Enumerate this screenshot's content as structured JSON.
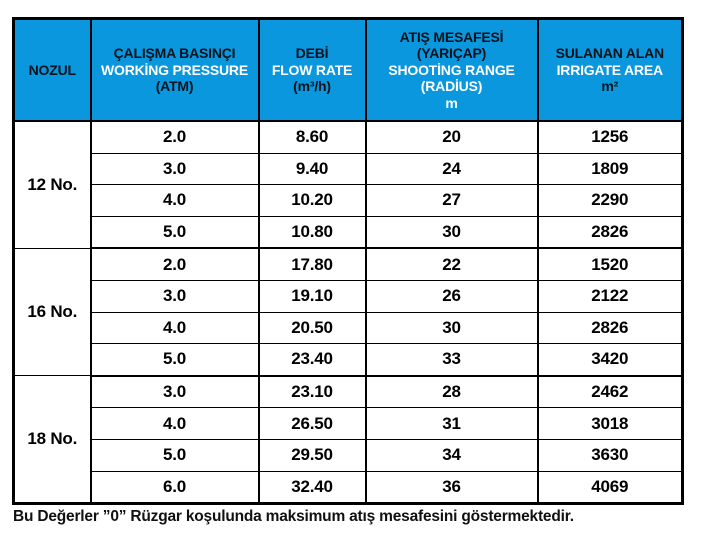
{
  "colors": {
    "header_bg": "#0B97DD",
    "header_dark_text": "#06131d",
    "header_light_text": "#ffffff",
    "border": "#000000",
    "body_text": "#000000"
  },
  "table": {
    "header": {
      "nozul": "NOZUL",
      "pressure": {
        "tr": "ÇALIŞMA BASINÇI",
        "en": "WORKİNG PRESSURE",
        "unit": "(ATM)"
      },
      "flow": {
        "tr": "DEBİ",
        "en": "FLOW RATE",
        "unit": "(m³/h)"
      },
      "range": {
        "tr1": "ATIŞ MESAFESİ",
        "tr2": "(YARIÇAP)",
        "en1": "SHOOTİNG RANGE",
        "en2": "(RADİUS)",
        "unit": "m"
      },
      "area": {
        "tr": "SULANAN ALAN",
        "en": "IRRIGATE AREA",
        "unit": "m²"
      }
    },
    "groups": [
      {
        "nozzle": "12 No.",
        "rows": [
          [
            "2.0",
            "8.60",
            "20",
            "1256"
          ],
          [
            "3.0",
            "9.40",
            "24",
            "1809"
          ],
          [
            "4.0",
            "10.20",
            "27",
            "2290"
          ],
          [
            "5.0",
            "10.80",
            "30",
            "2826"
          ]
        ]
      },
      {
        "nozzle": "16 No.",
        "rows": [
          [
            "2.0",
            "17.80",
            "22",
            "1520"
          ],
          [
            "3.0",
            "19.10",
            "26",
            "2122"
          ],
          [
            "4.0",
            "20.50",
            "30",
            "2826"
          ],
          [
            "5.0",
            "23.40",
            "33",
            "3420"
          ]
        ]
      },
      {
        "nozzle": "18 No.",
        "rows": [
          [
            "3.0",
            "23.10",
            "28",
            "2462"
          ],
          [
            "4.0",
            "26.50",
            "31",
            "3018"
          ],
          [
            "5.0",
            "29.50",
            "34",
            "3630"
          ],
          [
            "6.0",
            "32.40",
            "36",
            "4069"
          ]
        ]
      }
    ]
  },
  "footnote": "Bu Değerler ”0” Rüzgar koşulunda maksimum atış mesafesini göstermektedir."
}
